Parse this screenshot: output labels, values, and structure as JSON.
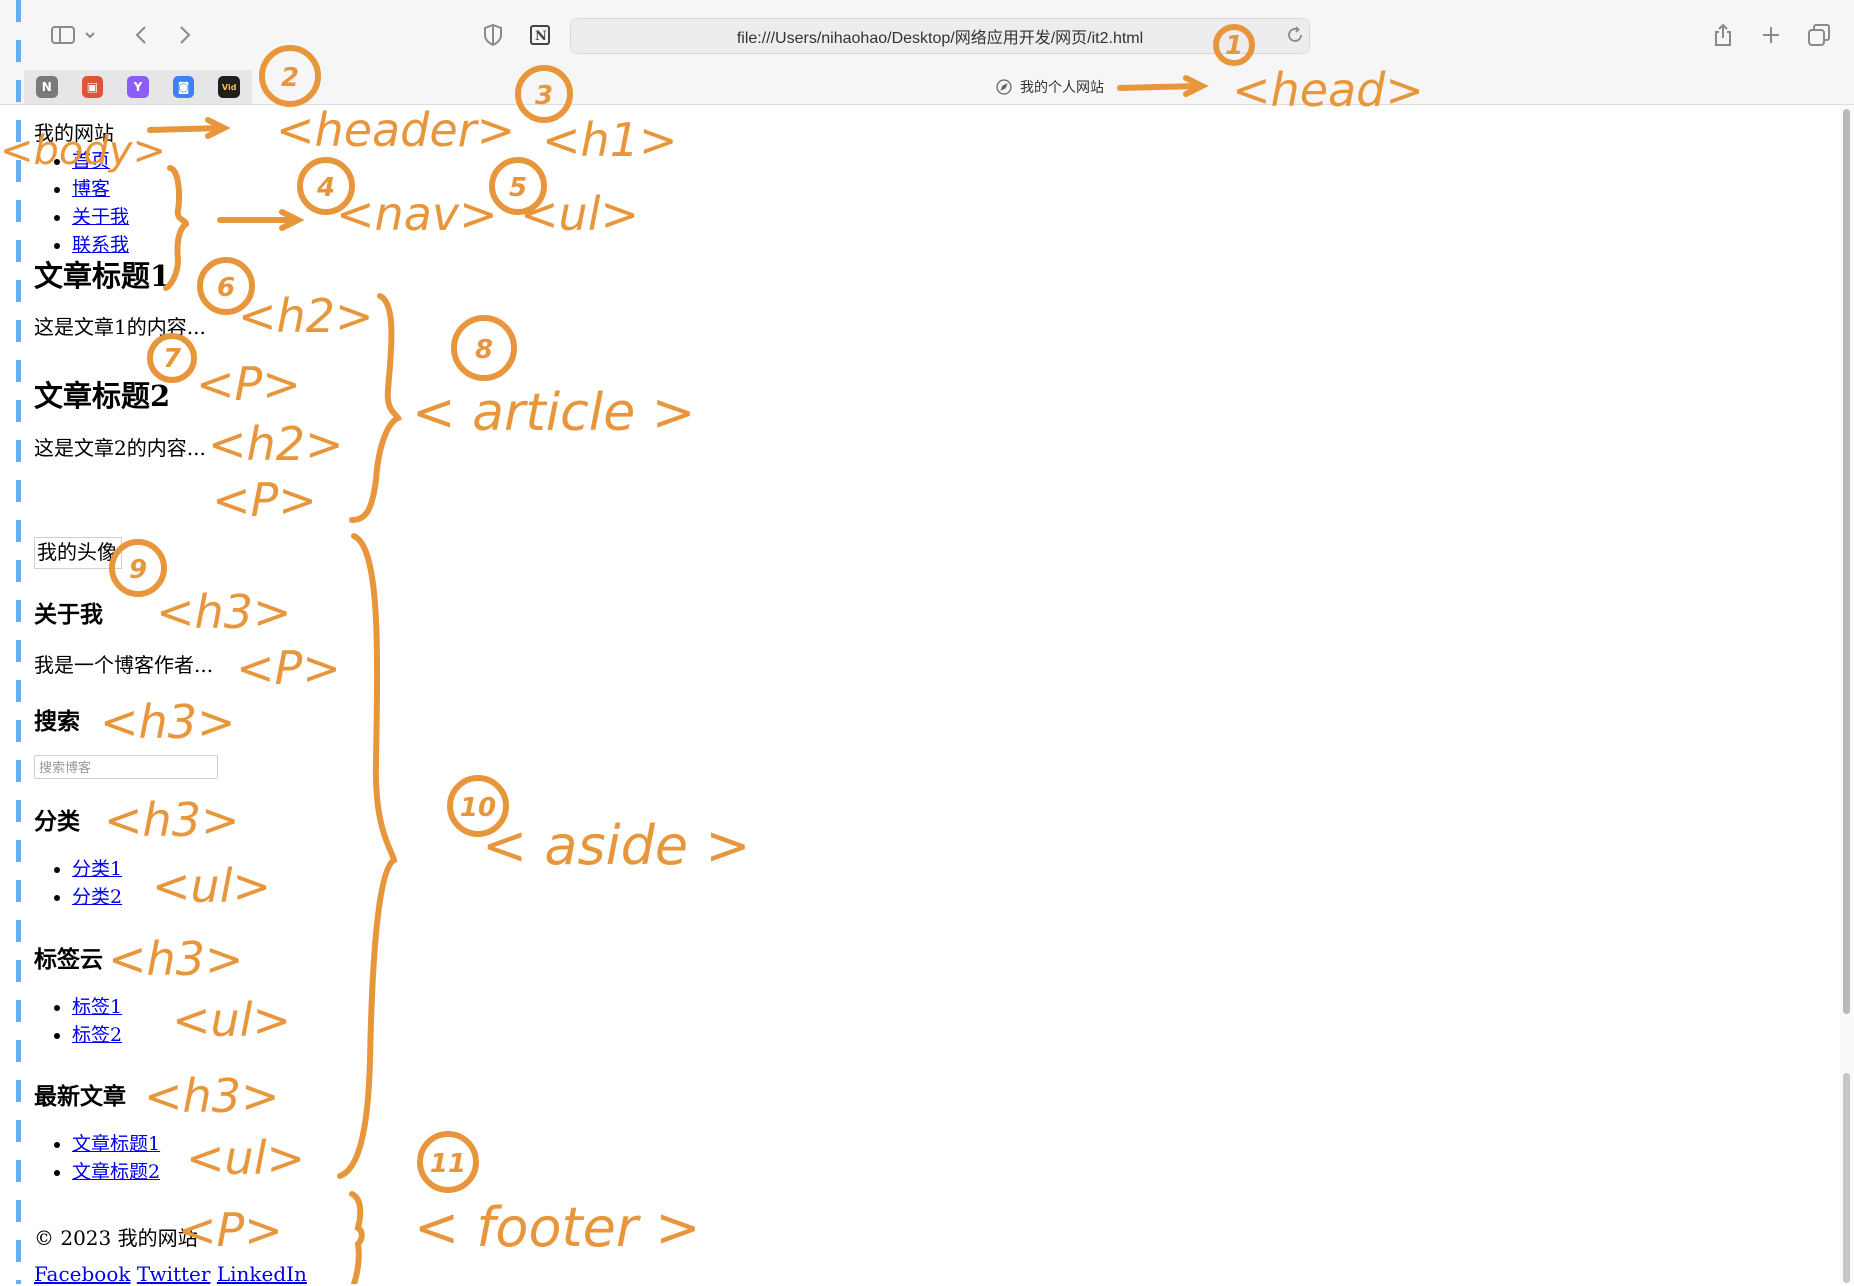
{
  "browser": {
    "address": "file:///Users/nihaohao/Desktop/网络应用开发/网页/it2.html",
    "tab_title": "我的个人网站",
    "favorites": [
      {
        "label": "N",
        "color": "#7a7a7a"
      },
      {
        "label": "▣",
        "color": "#e0553a"
      },
      {
        "label": "Y",
        "color": "#8b5cf6"
      },
      {
        "label": "◙",
        "color": "#3b82f6"
      },
      {
        "label": "Vid",
        "color": "#1f1f1f"
      }
    ]
  },
  "header": {
    "site_title": "我的网站",
    "nav": [
      "首页",
      "博客",
      "关于我",
      "联系我"
    ]
  },
  "article": {
    "h2_1": "文章标题1",
    "p_1": "这是文章1的内容...",
    "h2_2": "文章标题2",
    "p_2": "这是文章2的内容..."
  },
  "aside": {
    "avatar_alt": "我的头像",
    "about_title": "关于我",
    "about_text": "我是一个博客作者...",
    "search_title": "搜索",
    "search_placeholder": "搜索博客",
    "category_title": "分类",
    "categories": [
      "分类1",
      "分类2"
    ],
    "tags_title": "标签云",
    "tags": [
      "标签1",
      "标签2"
    ],
    "latest_title": "最新文章",
    "latest": [
      "文章标题1",
      "文章标题2"
    ]
  },
  "footer": {
    "copyright": "© 2023 我的网站",
    "links": [
      "Facebook",
      "Twitter",
      "LinkedIn"
    ]
  },
  "annotations": {
    "head": "<head>",
    "header": "<header>",
    "h1": "<h1>",
    "body": "<body>",
    "nav": "<nav>",
    "ul": "<ul>",
    "h2": "<h2>",
    "p": "<P>",
    "article": "< article >",
    "h3": "<h3>",
    "aside": "< aside >",
    "footer": "< footer >",
    "nums": [
      "1",
      "2",
      "3",
      "4",
      "5",
      "6",
      "7",
      "8",
      "9",
      "10",
      "11"
    ]
  }
}
